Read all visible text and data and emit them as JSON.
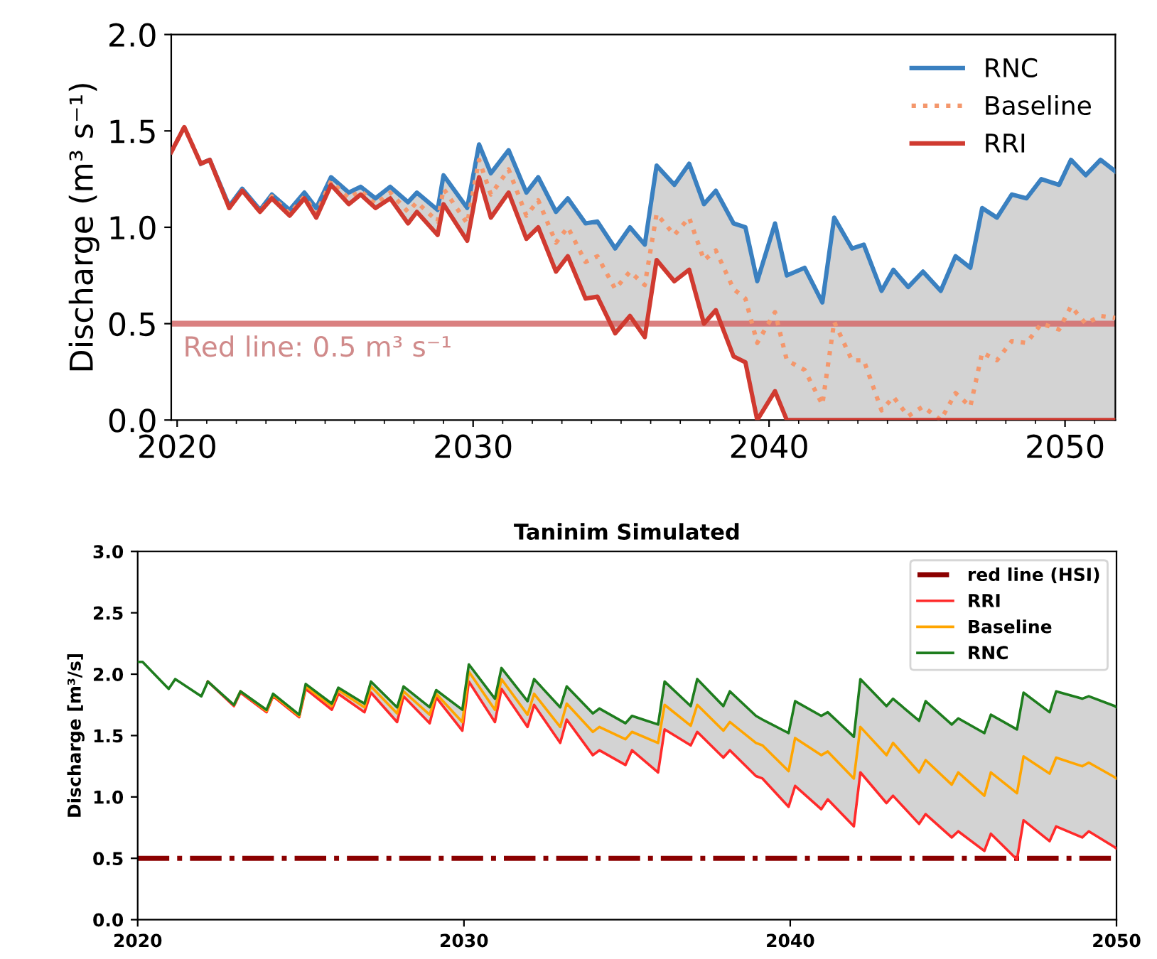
{
  "chart_data": [
    {
      "type": "line",
      "ylabel": "Discharge (m³ s⁻¹)",
      "xlim": [
        2019.8,
        2051.7
      ],
      "ylim": [
        0,
        2
      ],
      "xticks": [
        2020,
        {
          "value": 2021,
          "label": null
        },
        {
          "value": 2022,
          "label": null
        },
        {
          "value": 2023,
          "label": null
        },
        {
          "value": 2024,
          "label": null
        },
        {
          "value": 2025,
          "label": null
        },
        {
          "value": 2026,
          "label": null
        },
        {
          "value": 2027,
          "label": null
        },
        {
          "value": 2028,
          "label": null
        },
        {
          "value": 2029,
          "label": null
        },
        2030,
        {
          "value": 2031,
          "label": null
        },
        {
          "value": 2032,
          "label": null
        },
        {
          "value": 2033,
          "label": null
        },
        {
          "value": 2034,
          "label": null
        },
        {
          "value": 2035,
          "label": null
        },
        {
          "value": 2036,
          "label": null
        },
        {
          "value": 2037,
          "label": null
        },
        {
          "value": 2038,
          "label": null
        },
        {
          "value": 2039,
          "label": null
        },
        2040,
        {
          "value": 2041,
          "label": null
        },
        {
          "value": 2042,
          "label": null
        },
        {
          "value": 2043,
          "label": null
        },
        {
          "value": 2044,
          "label": null
        },
        {
          "value": 2045,
          "label": null
        },
        {
          "value": 2046,
          "label": null
        },
        {
          "value": 2047,
          "label": null
        },
        {
          "value": 2048,
          "label": null
        },
        {
          "value": 2049,
          "label": null
        },
        2050,
        {
          "value": 2051,
          "label": null
        }
      ],
      "yticks": [
        {
          "value": 0,
          "label": "0.0"
        },
        {
          "value": 0.5,
          "label": "0.5"
        },
        {
          "value": 1,
          "label": "1.0"
        },
        {
          "value": 1.5,
          "label": "1.5"
        },
        {
          "value": 2,
          "label": "2.0"
        }
      ],
      "x": [
        2019.8,
        2020.24,
        2020.8,
        2021.1,
        2021.76,
        2022.2,
        2022.8,
        2023.2,
        2023.8,
        2024.3,
        2024.7,
        2025.2,
        2025.8,
        2026.2,
        2026.7,
        2027.2,
        2027.8,
        2028.1,
        2028.8,
        2029.0,
        2029.8,
        2030.2,
        2030.6,
        2031.2,
        2031.8,
        2032.2,
        2032.8,
        2033.2,
        2033.8,
        2034.2,
        2034.8,
        2035.3,
        2035.8,
        2036.2,
        2036.8,
        2037.3,
        2037.8,
        2038.2,
        2038.8,
        2039.2,
        2039.6,
        2040.2,
        2040.6,
        2041.2,
        2041.8,
        2042.2,
        2042.8,
        2043.2,
        2043.8,
        2044.2,
        2044.7,
        2045.2,
        2045.8,
        2046.3,
        2046.8,
        2047.2,
        2047.7,
        2048.2,
        2048.7,
        2049.2,
        2049.8,
        2050.2,
        2050.7,
        2051.2,
        2051.7
      ],
      "series": [
        {
          "name": "RNC",
          "color": "#3a80c0",
          "line_style": "solid",
          "values": [
            null,
            null,
            1.33,
            1.35,
            1.11,
            1.2,
            1.09,
            1.17,
            1.09,
            1.18,
            1.1,
            1.26,
            1.18,
            1.21,
            1.15,
            1.21,
            1.13,
            1.18,
            1.09,
            1.27,
            1.1,
            1.43,
            1.28,
            1.4,
            1.18,
            1.26,
            1.08,
            1.15,
            1.02,
            1.03,
            0.89,
            1.0,
            0.91,
            1.32,
            1.22,
            1.33,
            1.12,
            1.19,
            1.02,
            1.0,
            0.72,
            1.02,
            0.75,
            0.79,
            0.61,
            1.05,
            0.89,
            0.91,
            0.67,
            0.78,
            0.69,
            0.77,
            0.67,
            0.85,
            0.79,
            1.1,
            1.05,
            1.17,
            1.15,
            1.25,
            1.22,
            1.35,
            1.27,
            1.35,
            1.29
          ]
        },
        {
          "name": "Baseline",
          "color": "#f4976c",
          "line_style": "dotted",
          "values": [
            1.39,
            1.52,
            1.33,
            1.35,
            1.1,
            1.19,
            1.08,
            1.16,
            1.07,
            1.16,
            1.07,
            1.24,
            1.15,
            1.19,
            1.12,
            1.18,
            1.08,
            1.13,
            1.03,
            1.2,
            1.02,
            1.35,
            1.17,
            1.3,
            1.06,
            1.14,
            0.92,
            1.0,
            0.82,
            0.85,
            0.68,
            0.77,
            0.7,
            1.07,
            0.96,
            1.05,
            0.83,
            0.88,
            0.68,
            0.63,
            0.4,
            0.56,
            0.31,
            0.26,
            0.08,
            0.51,
            0.31,
            0.31,
            0.05,
            0.12,
            0.02,
            0.07,
            0.0,
            0.14,
            0.07,
            0.35,
            0.31,
            0.41,
            0.4,
            0.5,
            0.47,
            0.59,
            0.5,
            0.54,
            0.53
          ],
          "lower": [
            1.39,
            1.52,
            1.33,
            1.35,
            1.1,
            1.19,
            1.08,
            1.15,
            1.06,
            1.15,
            1.05,
            1.22,
            1.12,
            1.17,
            1.1,
            1.15,
            1.02,
            1.08,
            0.96,
            1.12,
            0.93,
            1.26,
            1.05,
            1.18,
            0.94,
            1.0,
            0.77,
            0.85,
            0.63,
            0.64,
            0.45,
            0.54,
            0.43,
            0.83,
            0.72,
            0.78,
            0.5,
            0.57,
            0.33,
            0.3,
            0.0,
            0.15,
            0,
            0,
            0,
            0,
            0,
            0,
            0,
            0,
            0,
            0,
            0,
            0,
            0,
            0,
            0,
            0,
            0,
            0,
            0,
            0,
            0,
            0,
            0
          ],
          "upper": [
            1.39,
            1.52,
            1.33,
            1.35,
            1.11,
            1.2,
            1.09,
            1.17,
            1.09,
            1.18,
            1.1,
            1.26,
            1.18,
            1.21,
            1.15,
            1.21,
            1.13,
            1.18,
            1.09,
            1.27,
            1.1,
            1.43,
            1.28,
            1.4,
            1.18,
            1.26,
            1.08,
            1.15,
            1.02,
            1.03,
            0.89,
            1.0,
            0.91,
            1.32,
            1.22,
            1.33,
            1.12,
            1.19,
            1.02,
            1.0,
            0.72,
            1.02,
            0.75,
            0.79,
            0.61,
            1.05,
            0.89,
            0.91,
            0.67,
            0.78,
            0.69,
            0.77,
            0.67,
            0.85,
            0.79,
            1.1,
            1.05,
            1.17,
            1.15,
            1.25,
            1.22,
            1.35,
            1.27,
            1.35,
            1.29
          ]
        },
        {
          "name": "RRI",
          "color": "#d03a30",
          "line_style": "solid",
          "values": [
            1.39,
            1.52,
            1.33,
            1.35,
            1.1,
            1.19,
            1.08,
            1.15,
            1.06,
            1.15,
            1.05,
            1.22,
            1.12,
            1.17,
            1.1,
            1.15,
            1.02,
            1.08,
            0.96,
            1.12,
            0.93,
            1.26,
            1.05,
            1.18,
            0.94,
            1.0,
            0.77,
            0.85,
            0.63,
            0.64,
            0.45,
            0.54,
            0.43,
            0.83,
            0.72,
            0.78,
            0.5,
            0.57,
            0.33,
            0.3,
            0.0,
            0.15,
            0,
            0,
            0,
            0,
            0,
            0,
            0,
            0,
            0,
            0,
            0,
            0,
            0,
            0,
            0,
            0,
            0,
            0,
            0,
            0,
            0,
            0,
            0
          ]
        }
      ],
      "ref_lines": [
        {
          "axis": "y",
          "value": 0.5,
          "color": "#d46a6a",
          "line_style": "solid"
        }
      ],
      "annotations": [
        {
          "text": "Red line: 0.5 m³ s⁻¹",
          "x": 2020.2,
          "y": 0.5
        }
      ],
      "legend": "top right",
      "grid": false
    },
    {
      "type": "line",
      "title": "Taninim Simulated",
      "ylabel": "Discharge [m³/s]",
      "xlim": [
        2020,
        2050
      ],
      "ylim": [
        0,
        3
      ],
      "xticks": [
        2020,
        2030,
        2040,
        2050
      ],
      "yticks": [
        {
          "value": 0,
          "label": "0.0"
        },
        {
          "value": 0.5,
          "label": "0.5"
        },
        {
          "value": 1,
          "label": "1.0"
        },
        {
          "value": 1.5,
          "label": "1.5"
        },
        {
          "value": 2,
          "label": "2.0"
        },
        {
          "value": 2.5,
          "label": "2.5"
        },
        {
          "value": 3,
          "label": "3.0"
        }
      ],
      "x": [
        2020.0,
        2020.15,
        2020.95,
        2021.15,
        2021.95,
        2022.15,
        2022.95,
        2023.15,
        2023.95,
        2024.15,
        2024.95,
        2025.15,
        2025.95,
        2026.15,
        2026.95,
        2027.15,
        2027.95,
        2028.15,
        2028.95,
        2029.15,
        2029.95,
        2030.15,
        2030.95,
        2031.15,
        2031.95,
        2032.15,
        2032.95,
        2033.15,
        2033.95,
        2034.15,
        2034.95,
        2035.15,
        2035.95,
        2036.15,
        2036.95,
        2037.15,
        2037.95,
        2038.15,
        2038.95,
        2039.15,
        2039.95,
        2040.15,
        2040.95,
        2041.15,
        2041.95,
        2042.15,
        2042.95,
        2043.15,
        2043.95,
        2044.15,
        2044.95,
        2045.15,
        2045.95,
        2046.15,
        2046.95,
        2047.15,
        2047.95,
        2048.15,
        2048.95,
        2049.15,
        2049.95,
        2050.0
      ],
      "series": [
        {
          "name": "RRI",
          "color": "#ff2a2a",
          "line_style": "solid",
          "values": [
            null,
            null,
            null,
            null,
            null,
            1.94,
            1.74,
            1.85,
            1.69,
            1.82,
            1.65,
            1.88,
            1.71,
            1.84,
            1.69,
            1.85,
            1.61,
            1.82,
            1.6,
            1.81,
            1.54,
            1.94,
            1.61,
            1.88,
            1.57,
            1.75,
            1.44,
            1.63,
            1.34,
            1.38,
            1.26,
            1.38,
            1.2,
            1.55,
            1.42,
            1.53,
            1.32,
            1.38,
            1.17,
            1.15,
            0.92,
            1.09,
            0.9,
            0.98,
            0.76,
            1.2,
            0.95,
            1.01,
            0.78,
            0.86,
            0.67,
            0.72,
            0.56,
            0.7,
            0.49,
            0.81,
            0.64,
            0.76,
            0.67,
            0.72,
            0.59,
            0.58
          ]
        },
        {
          "name": "Baseline",
          "color": "#ffa500",
          "line_style": "solid",
          "values": [
            null,
            null,
            null,
            null,
            null,
            null,
            1.75,
            1.86,
            1.7,
            1.83,
            1.66,
            1.9,
            1.74,
            1.87,
            1.73,
            1.9,
            1.68,
            1.86,
            1.67,
            1.84,
            1.61,
            2.02,
            1.71,
            1.96,
            1.67,
            1.84,
            1.57,
            1.76,
            1.53,
            1.57,
            1.47,
            1.53,
            1.44,
            1.75,
            1.58,
            1.75,
            1.54,
            1.61,
            1.44,
            1.42,
            1.21,
            1.48,
            1.34,
            1.37,
            1.15,
            1.57,
            1.34,
            1.44,
            1.2,
            1.3,
            1.1,
            1.2,
            1.01,
            1.2,
            1.03,
            1.33,
            1.19,
            1.32,
            1.25,
            1.28,
            1.16,
            1.15
          ],
          "lower": [
            2.1,
            2.1,
            1.88,
            1.96,
            1.82,
            1.94,
            1.74,
            1.85,
            1.69,
            1.82,
            1.65,
            1.88,
            1.71,
            1.84,
            1.69,
            1.85,
            1.61,
            1.82,
            1.6,
            1.81,
            1.54,
            1.94,
            1.61,
            1.88,
            1.57,
            1.75,
            1.44,
            1.63,
            1.34,
            1.38,
            1.26,
            1.38,
            1.2,
            1.55,
            1.42,
            1.53,
            1.32,
            1.38,
            1.17,
            1.15,
            0.92,
            1.09,
            0.9,
            0.98,
            0.76,
            1.2,
            0.95,
            1.01,
            0.78,
            0.86,
            0.67,
            0.72,
            0.56,
            0.7,
            0.49,
            0.81,
            0.64,
            0.76,
            0.67,
            0.72,
            0.59,
            0.58
          ],
          "upper": [
            2.1,
            2.1,
            1.88,
            1.96,
            1.82,
            1.94,
            1.75,
            1.86,
            1.71,
            1.84,
            1.67,
            1.92,
            1.76,
            1.89,
            1.76,
            1.94,
            1.73,
            1.9,
            1.73,
            1.87,
            1.71,
            2.08,
            1.8,
            2.05,
            1.78,
            1.96,
            1.73,
            1.9,
            1.68,
            1.72,
            1.6,
            1.66,
            1.59,
            1.94,
            1.74,
            1.96,
            1.74,
            1.86,
            1.66,
            1.63,
            1.52,
            1.78,
            1.66,
            1.69,
            1.49,
            1.96,
            1.74,
            1.8,
            1.62,
            1.78,
            1.59,
            1.64,
            1.52,
            1.67,
            1.55,
            1.85,
            1.69,
            1.86,
            1.8,
            1.82,
            1.74,
            1.73
          ]
        },
        {
          "name": "RNC",
          "color": "#1e7d1e",
          "line_style": "solid",
          "values": [
            2.1,
            2.1,
            1.88,
            1.96,
            1.82,
            1.94,
            1.75,
            1.86,
            1.71,
            1.84,
            1.67,
            1.92,
            1.76,
            1.89,
            1.76,
            1.94,
            1.73,
            1.9,
            1.73,
            1.87,
            1.71,
            2.08,
            1.8,
            2.05,
            1.78,
            1.96,
            1.73,
            1.9,
            1.68,
            1.72,
            1.6,
            1.66,
            1.59,
            1.94,
            1.74,
            1.96,
            1.74,
            1.86,
            1.66,
            1.63,
            1.52,
            1.78,
            1.66,
            1.69,
            1.49,
            1.96,
            1.74,
            1.8,
            1.62,
            1.78,
            1.59,
            1.64,
            1.52,
            1.67,
            1.55,
            1.85,
            1.69,
            1.86,
            1.8,
            1.82,
            1.74,
            1.73
          ]
        }
      ],
      "ref_lines": [
        {
          "axis": "y",
          "value": 0.5,
          "label": "red line (HSI)",
          "color": "#8b0000",
          "line_style": "dashdot"
        }
      ],
      "legend": "top right",
      "grid": false
    }
  ]
}
